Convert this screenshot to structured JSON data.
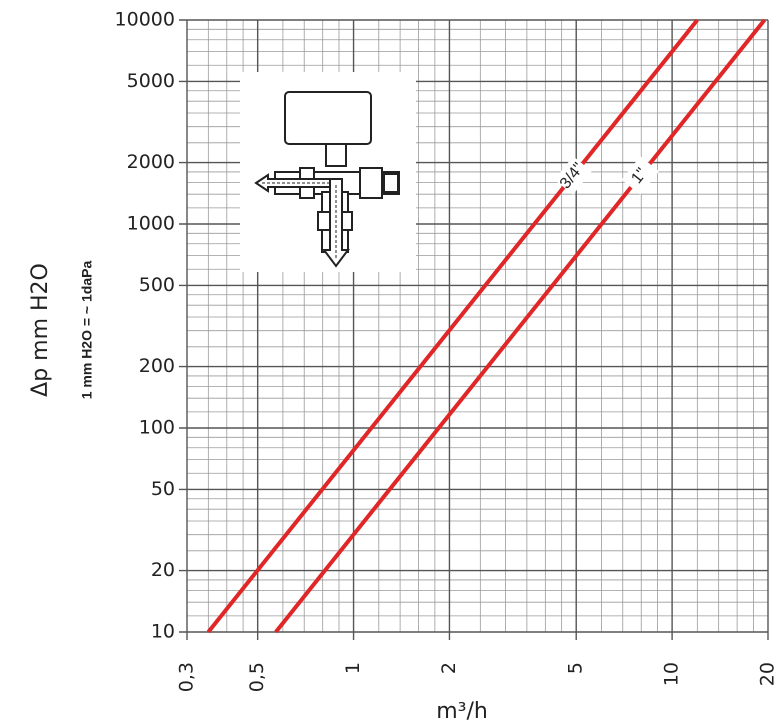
{
  "chart_data": {
    "type": "line",
    "y_label": "Δp  mm H2O",
    "y_sublabel": "1 mm H2O = ~ 1daPa",
    "x_label": "m³/h",
    "xlog": true,
    "ylog": true,
    "grid": true,
    "xlim": [
      0.3,
      20
    ],
    "ylim": [
      10,
      10000
    ],
    "xticks": [
      {
        "value": 0.3,
        "label": "0,3"
      },
      {
        "value": 0.5,
        "label": "0,5"
      },
      1,
      2,
      5,
      10,
      20
    ],
    "yticks": [
      10,
      20,
      50,
      100,
      200,
      500,
      1000,
      2000,
      5000,
      10000
    ],
    "series": [
      {
        "name": "3/4\"",
        "color": "#e02626",
        "x": [
          0.35,
          12
        ],
        "values": [
          10,
          10000
        ]
      },
      {
        "name": "1\"",
        "color": "#e02626",
        "x": [
          0.57,
          19.5
        ],
        "values": [
          10,
          10000
        ]
      }
    ]
  }
}
